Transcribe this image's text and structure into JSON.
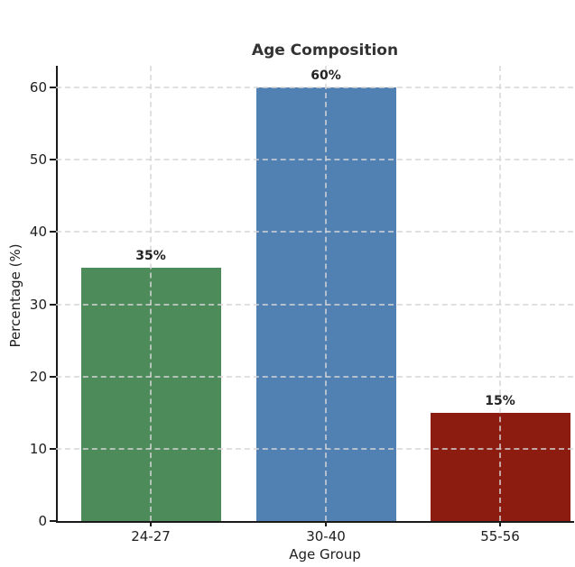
{
  "chart_data": {
    "type": "bar",
    "title": "Age Composition",
    "xlabel": "Age Group",
    "ylabel": "Percentage (%)",
    "categories": [
      "24-27",
      "30-40",
      "55-56"
    ],
    "values": [
      35,
      60,
      15
    ],
    "value_labels": [
      "35%",
      "60%",
      "15%"
    ],
    "bar_colors": [
      "#4d8b5b",
      "#5180b3",
      "#8c1b10"
    ],
    "yticks": [
      0,
      10,
      20,
      30,
      40,
      50,
      60
    ],
    "ytick_labels": [
      "0",
      "10",
      "20",
      "30",
      "40",
      "50",
      "60"
    ],
    "ylim": [
      0,
      63
    ],
    "grid": "dashed, horizontal and vertical, light gray, drawn over bars",
    "legend_position": "none",
    "background_color": "#ffffff",
    "spine_color": "#1a1a1a",
    "title_color": "#333333",
    "text_color": "#202020"
  }
}
